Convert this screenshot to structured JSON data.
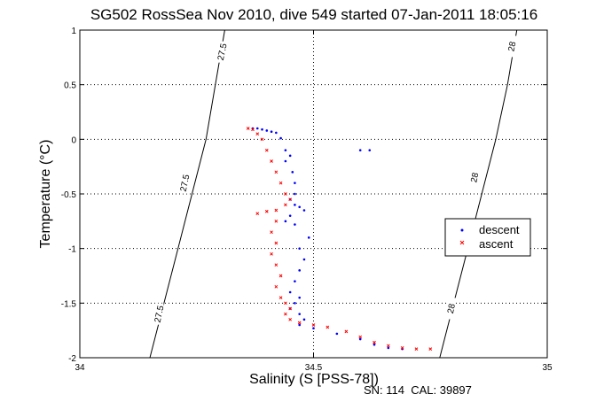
{
  "chart_data": {
    "type": "scatter",
    "title": "SG502 RossSea Nov 2010, dive 549 started 07-Jan-2011 18:05:16",
    "xlabel": "Salinity (S [PSS-78])",
    "ylabel": "Temperature (°C)",
    "footer": "SN: 114  CAL: 39897",
    "xlim": [
      34,
      35
    ],
    "ylim": [
      -2,
      1
    ],
    "x_ticks": [
      "34",
      "34.5",
      "35"
    ],
    "y_ticks": [
      "-2",
      "-1.5",
      "-1",
      "-0.5",
      "0",
      "0.5",
      "1"
    ],
    "grid": true,
    "legend_position": "right",
    "density_contours": [
      {
        "value": "27.5",
        "points": [
          [
            34.15,
            -2.0
          ],
          [
            34.18,
            -1.5
          ],
          [
            34.21,
            -1.0
          ],
          [
            34.24,
            -0.5
          ],
          [
            34.27,
            0.0
          ],
          [
            34.29,
            0.5
          ],
          [
            34.31,
            1.0
          ]
        ],
        "labels": [
          {
            "text": "27.5",
            "x": 34.17,
            "y": -1.6
          },
          {
            "text": "27.5",
            "x": 34.225,
            "y": -0.4
          },
          {
            "text": "27.5",
            "x": 34.305,
            "y": 0.8
          }
        ]
      },
      {
        "value": "28",
        "points": [
          [
            34.77,
            -2.0
          ],
          [
            34.8,
            -1.5
          ],
          [
            34.83,
            -1.0
          ],
          [
            34.86,
            -0.5
          ],
          [
            34.89,
            0.0
          ],
          [
            34.915,
            0.5
          ],
          [
            34.935,
            1.0
          ]
        ],
        "labels": [
          {
            "text": "28",
            "x": 34.795,
            "y": -1.55
          },
          {
            "text": "28",
            "x": 34.845,
            "y": -0.35
          },
          {
            "text": "28",
            "x": 34.925,
            "y": 0.85
          }
        ]
      }
    ],
    "series": [
      {
        "name": "descent",
        "color": "#0000ff",
        "marker": "dot",
        "points": [
          [
            34.37,
            0.1
          ],
          [
            34.38,
            0.1
          ],
          [
            34.39,
            0.09
          ],
          [
            34.4,
            0.08
          ],
          [
            34.41,
            0.07
          ],
          [
            34.42,
            0.06
          ],
          [
            34.43,
            0.01
          ],
          [
            34.44,
            -0.1
          ],
          [
            34.45,
            -0.15
          ],
          [
            34.44,
            -0.2
          ],
          [
            34.455,
            -0.3
          ],
          [
            34.46,
            -0.4
          ],
          [
            34.46,
            -0.5
          ],
          [
            34.45,
            -0.55
          ],
          [
            34.46,
            -0.6
          ],
          [
            34.47,
            -0.62
          ],
          [
            34.48,
            -0.65
          ],
          [
            34.45,
            -0.7
          ],
          [
            34.44,
            -0.75
          ],
          [
            34.46,
            -0.78
          ],
          [
            34.49,
            -0.9
          ],
          [
            34.47,
            -1.0
          ],
          [
            34.48,
            -1.1
          ],
          [
            34.47,
            -1.2
          ],
          [
            34.46,
            -1.3
          ],
          [
            34.45,
            -1.4
          ],
          [
            34.47,
            -1.45
          ],
          [
            34.46,
            -1.5
          ],
          [
            34.45,
            -1.55
          ],
          [
            34.47,
            -1.6
          ],
          [
            34.48,
            -1.65
          ],
          [
            34.47,
            -1.7
          ],
          [
            34.5,
            -1.73
          ],
          [
            34.55,
            -1.78
          ],
          [
            34.6,
            -1.83
          ],
          [
            34.63,
            -1.88
          ],
          [
            34.66,
            -1.91
          ],
          [
            34.69,
            -1.92
          ],
          [
            34.6,
            -0.1
          ],
          [
            34.62,
            -0.1
          ]
        ]
      },
      {
        "name": "ascent",
        "color": "#ff0000",
        "marker": "x",
        "points": [
          [
            34.36,
            0.1
          ],
          [
            34.37,
            0.09
          ],
          [
            34.38,
            0.05
          ],
          [
            34.39,
            0.0
          ],
          [
            34.4,
            -0.1
          ],
          [
            34.41,
            -0.2
          ],
          [
            34.42,
            -0.3
          ],
          [
            34.43,
            -0.4
          ],
          [
            34.44,
            -0.5
          ],
          [
            34.45,
            -0.55
          ],
          [
            34.44,
            -0.6
          ],
          [
            34.42,
            -0.65
          ],
          [
            34.4,
            -0.66
          ],
          [
            34.38,
            -0.68
          ],
          [
            34.42,
            -0.75
          ],
          [
            34.41,
            -0.85
          ],
          [
            34.42,
            -0.95
          ],
          [
            34.41,
            -1.05
          ],
          [
            34.42,
            -1.15
          ],
          [
            34.43,
            -1.25
          ],
          [
            34.42,
            -1.35
          ],
          [
            34.43,
            -1.45
          ],
          [
            34.44,
            -1.5
          ],
          [
            34.45,
            -1.55
          ],
          [
            34.44,
            -1.6
          ],
          [
            34.45,
            -1.65
          ],
          [
            34.47,
            -1.68
          ],
          [
            34.5,
            -1.7
          ],
          [
            34.53,
            -1.72
          ],
          [
            34.57,
            -1.76
          ],
          [
            34.6,
            -1.81
          ],
          [
            34.63,
            -1.86
          ],
          [
            34.66,
            -1.89
          ],
          [
            34.69,
            -1.91
          ],
          [
            34.72,
            -1.92
          ],
          [
            34.75,
            -1.92
          ]
        ]
      }
    ]
  }
}
